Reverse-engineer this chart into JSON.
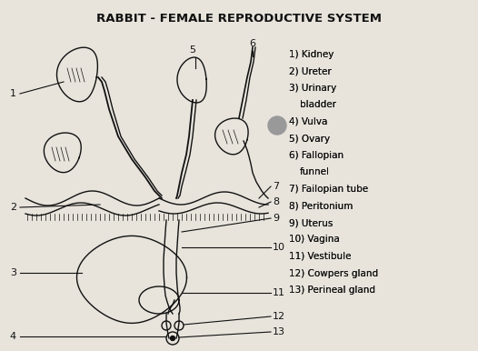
{
  "title": "RABBIT - FEMALE REPRODUCTIVE SYSTEM",
  "bg_color": "#e8e4dc",
  "title_fontsize": 9.5,
  "legend_lines": [
    "1) Kidney",
    "2) Ureter",
    "3) Urinary",
    "bladder",
    "4) Vulva",
    "5) Ovary",
    "6) Fallopian",
    "funnel",
    "7) Failopian tube",
    "8) Peritonium",
    "9) Uterus",
    "10) Vagina",
    "11) Vestibule",
    "12) Cowpers gland",
    "13) Perineal gland"
  ],
  "lc": "#111111",
  "lw": 1.0,
  "fig_w": 5.26,
  "fig_h": 3.86,
  "dpi": 100
}
